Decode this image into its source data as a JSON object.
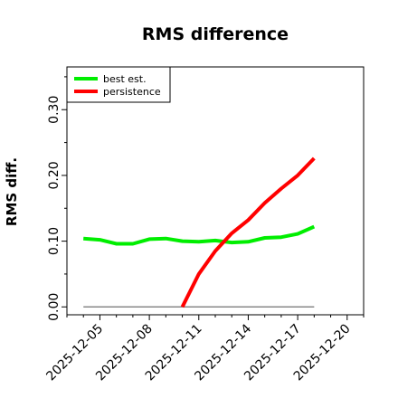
{
  "chart_data": {
    "type": "line",
    "title": "RMS difference",
    "xlabel": "",
    "ylabel": "RMS diff.",
    "xlim": [
      "2025-12-03",
      "2025-12-21"
    ],
    "ylim": [
      -0.012,
      0.365
    ],
    "x_ticks": [
      "2025-12-05",
      "2025-12-08",
      "2025-12-11",
      "2025-12-14",
      "2025-12-17",
      "2025-12-20"
    ],
    "y_ticks": [
      "0.00",
      "0.10",
      "0.20",
      "0.30"
    ],
    "grid": false,
    "legend": "top-left",
    "baseline": {
      "y": 0,
      "x_start": "2025-12-04",
      "x_end": "2025-12-18",
      "color": "#707070"
    },
    "series": [
      {
        "name": "best est.",
        "color": "#00ee00",
        "points": [
          [
            "2025-12-04",
            0.104
          ],
          [
            "2025-12-05",
            0.102
          ],
          [
            "2025-12-06",
            0.096
          ],
          [
            "2025-12-07",
            0.096
          ],
          [
            "2025-12-08",
            0.103
          ],
          [
            "2025-12-09",
            0.104
          ],
          [
            "2025-12-10",
            0.1
          ],
          [
            "2025-12-11",
            0.099
          ],
          [
            "2025-12-12",
            0.101
          ],
          [
            "2025-12-13",
            0.098
          ],
          [
            "2025-12-14",
            0.099
          ],
          [
            "2025-12-15",
            0.105
          ],
          [
            "2025-12-16",
            0.106
          ],
          [
            "2025-12-17",
            0.111
          ],
          [
            "2025-12-18",
            0.122
          ]
        ]
      },
      {
        "name": "persistence",
        "color": "#ff0000",
        "points": [
          [
            "2025-12-10",
            0.0
          ],
          [
            "2025-12-11",
            0.05
          ],
          [
            "2025-12-12",
            0.085
          ],
          [
            "2025-12-13",
            0.112
          ],
          [
            "2025-12-14",
            0.132
          ],
          [
            "2025-12-15",
            0.158
          ],
          [
            "2025-12-16",
            0.18
          ],
          [
            "2025-12-17",
            0.2
          ],
          [
            "2025-12-18",
            0.226
          ]
        ]
      }
    ]
  }
}
